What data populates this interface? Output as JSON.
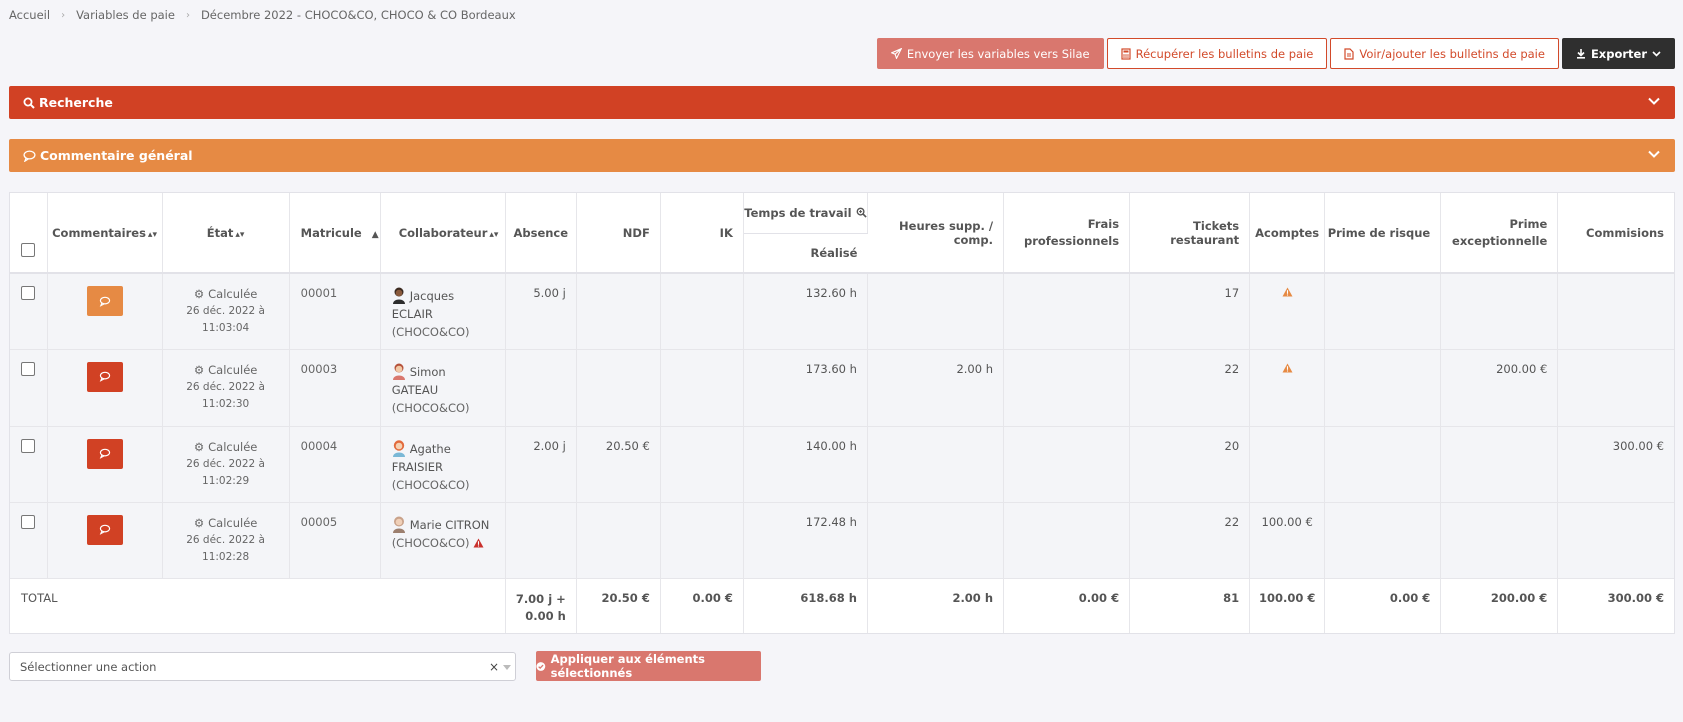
{
  "breadcrumb": [
    "Accueil",
    "Variables de paie",
    "Décembre 2022 - CHOCO&CO, CHOCO & CO Bordeaux"
  ],
  "toolbar": {
    "send_label": "Envoyer les variables vers Silae",
    "fetch_label": "Récupérer les bulletins de paie",
    "view_label": "Voir/ajouter les bulletins de paie",
    "export_label": "Exporter"
  },
  "panels": {
    "search": "Recherche",
    "comment": "Commentaire général"
  },
  "table": {
    "headers": {
      "commentaires": "Commentaires",
      "etat": "État",
      "matricule": "Matricule",
      "collaborateur": "Collaborateur",
      "absence": "Absence",
      "ndf": "NDF",
      "ik": "IK",
      "temps": "Temps de travail",
      "realise": "Réalisé",
      "heures": "Heures supp. / comp.",
      "frais": "Frais professionnels",
      "tickets": "Tickets restaurant",
      "acomptes": "Acomptes",
      "risque": "Prime de risque",
      "exceptionnelle": "Prime exceptionnelle",
      "commisions": "Commisions"
    },
    "rows": [
      {
        "status": "Calculée",
        "date": "26 déc. 2022 à",
        "time": "11:03:04",
        "matricule": "00001",
        "name_line1": "Jacques",
        "name_line2": "ECLAIR",
        "company": "(CHOCO&CO)",
        "absence": "5.00 j",
        "ndf": "",
        "ik": "",
        "realise": "132.60 h",
        "heures": "",
        "frais": "",
        "tickets": "17",
        "acomptes": "",
        "risque": "",
        "exceptionnelle": "",
        "commisions": ""
      },
      {
        "status": "Calculée",
        "date": "26 déc. 2022 à",
        "time": "11:02:30",
        "matricule": "00003",
        "name_line1": "Simon",
        "name_line2": "GATEAU",
        "company": "(CHOCO&CO)",
        "absence": "",
        "ndf": "",
        "ik": "",
        "realise": "173.60 h",
        "heures": "2.00 h",
        "frais": "",
        "tickets": "22",
        "acomptes": "",
        "risque": "",
        "exceptionnelle": "200.00 €",
        "commisions": ""
      },
      {
        "status": "Calculée",
        "date": "26 déc. 2022 à",
        "time": "11:02:29",
        "matricule": "00004",
        "name_line1": "Agathe",
        "name_line2": "FRAISIER",
        "company": "(CHOCO&CO)",
        "absence": "2.00 j",
        "ndf": "20.50 €",
        "ik": "",
        "realise": "140.00 h",
        "heures": "",
        "frais": "",
        "tickets": "20",
        "acomptes": "",
        "risque": "",
        "exceptionnelle": "",
        "commisions": "300.00 €"
      },
      {
        "status": "Calculée",
        "date": "26 déc. 2022 à",
        "time": "11:02:28",
        "matricule": "00005",
        "name_line1": "Marie CITRON",
        "name_line2": "",
        "company": "(CHOCO&CO)",
        "absence": "",
        "ndf": "",
        "ik": "",
        "realise": "172.48 h",
        "heures": "",
        "frais": "",
        "tickets": "22",
        "acomptes": "100.00 €",
        "risque": "",
        "exceptionnelle": "",
        "commisions": ""
      }
    ],
    "total": {
      "label": "TOTAL",
      "absence_line1": "7.00 j +",
      "absence_line2": "0.00 h",
      "ndf": "20.50 €",
      "ik": "0.00 €",
      "realise": "618.68 h",
      "heures": "2.00 h",
      "frais": "0.00 €",
      "tickets": "81",
      "acomptes": "100.00 €",
      "risque": "0.00 €",
      "exceptionnelle": "200.00 €",
      "commisions": "300.00 €"
    }
  },
  "bulk": {
    "select_placeholder": "Sélectionner une action",
    "clear": "×",
    "apply_label": "Appliquer aux éléments sélectionnés"
  },
  "colors": {
    "primary_red": "#d14124",
    "orange": "#e68a44",
    "soft_red": "#d9776e",
    "dark": "#2f2f2f"
  }
}
